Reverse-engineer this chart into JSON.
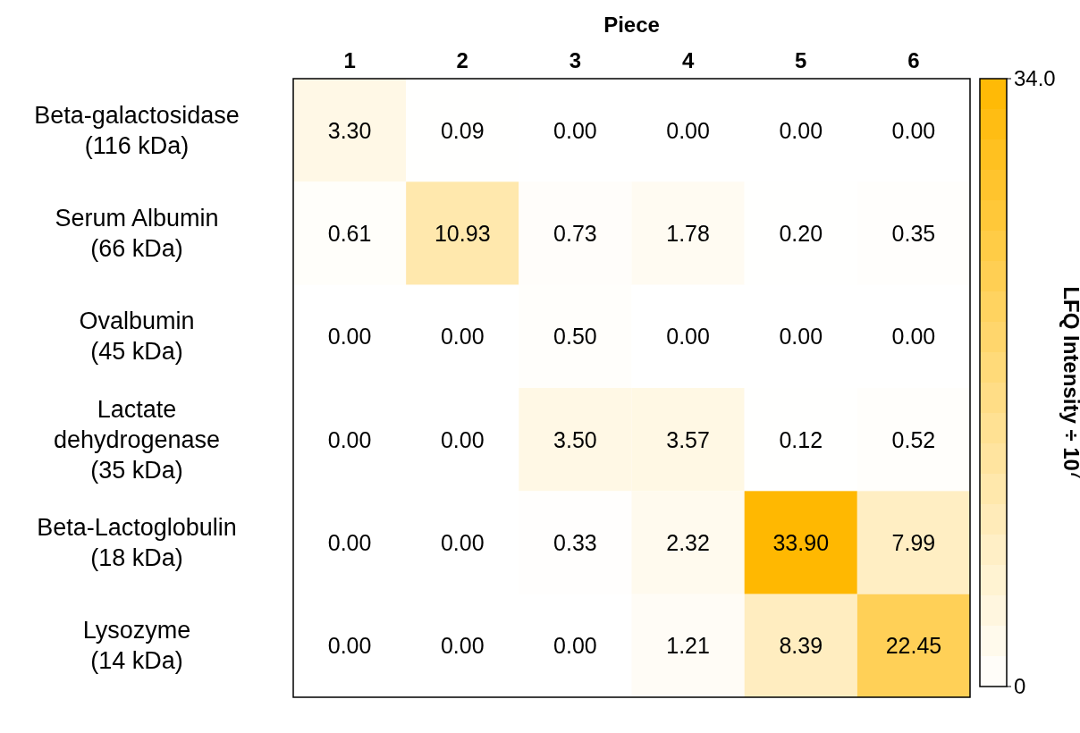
{
  "chart_data": {
    "type": "heatmap",
    "xlabel": "Piece",
    "clabel": "LFQ Intensity ÷ 10$^{7}$",
    "categories": [
      "1",
      "2",
      "3",
      "4",
      "5",
      "6"
    ],
    "y_categories": [
      "Beta-galactosidase\n(116 kDa)",
      "Serum Albumin\n(66 kDa)",
      "Ovalbumin\n(45 kDa)",
      "Lactate\ndehydrogenase\n(35 kDa)",
      "Beta-Lactoglobulin\n(18 kDa)",
      "Lysozyme\n(14 kDa)"
    ],
    "cells": [
      [
        3.3,
        0.09,
        0.0,
        0.0,
        0.0,
        0.0
      ],
      [
        0.61,
        10.93,
        0.73,
        1.78,
        0.2,
        0.35
      ],
      [
        0.0,
        0.0,
        0.5,
        0.0,
        0.0,
        0.0
      ],
      [
        0.0,
        0.0,
        3.5,
        3.57,
        0.12,
        0.52
      ],
      [
        0.0,
        0.0,
        0.33,
        2.32,
        33.9,
        7.99
      ],
      [
        0.0,
        0.0,
        0.0,
        1.21,
        8.39,
        22.45
      ]
    ],
    "cell_labels": [
      [
        "3.30",
        "0.09",
        "0.00",
        "0.00",
        "0.00",
        "0.00"
      ],
      [
        "0.61",
        "10.93",
        "0.73",
        "1.78",
        "0.20",
        "0.35"
      ],
      [
        "0.00",
        "0.00",
        "0.50",
        "0.00",
        "0.00",
        "0.00"
      ],
      [
        "0.00",
        "0.00",
        "3.50",
        "3.57",
        "0.12",
        "0.52"
      ],
      [
        "0.00",
        "0.00",
        "0.33",
        "2.32",
        "33.90",
        "7.99"
      ],
      [
        "0.00",
        "0.00",
        "0.00",
        "1.21",
        "8.39",
        "22.45"
      ]
    ],
    "clim": [
      0,
      34.0
    ],
    "cticks": [
      {
        "value": 0,
        "label": "0"
      },
      {
        "value": 34.0,
        "label": "34.0"
      }
    ],
    "colors": [
      "#ffffff",
      "#ffb800"
    ]
  }
}
